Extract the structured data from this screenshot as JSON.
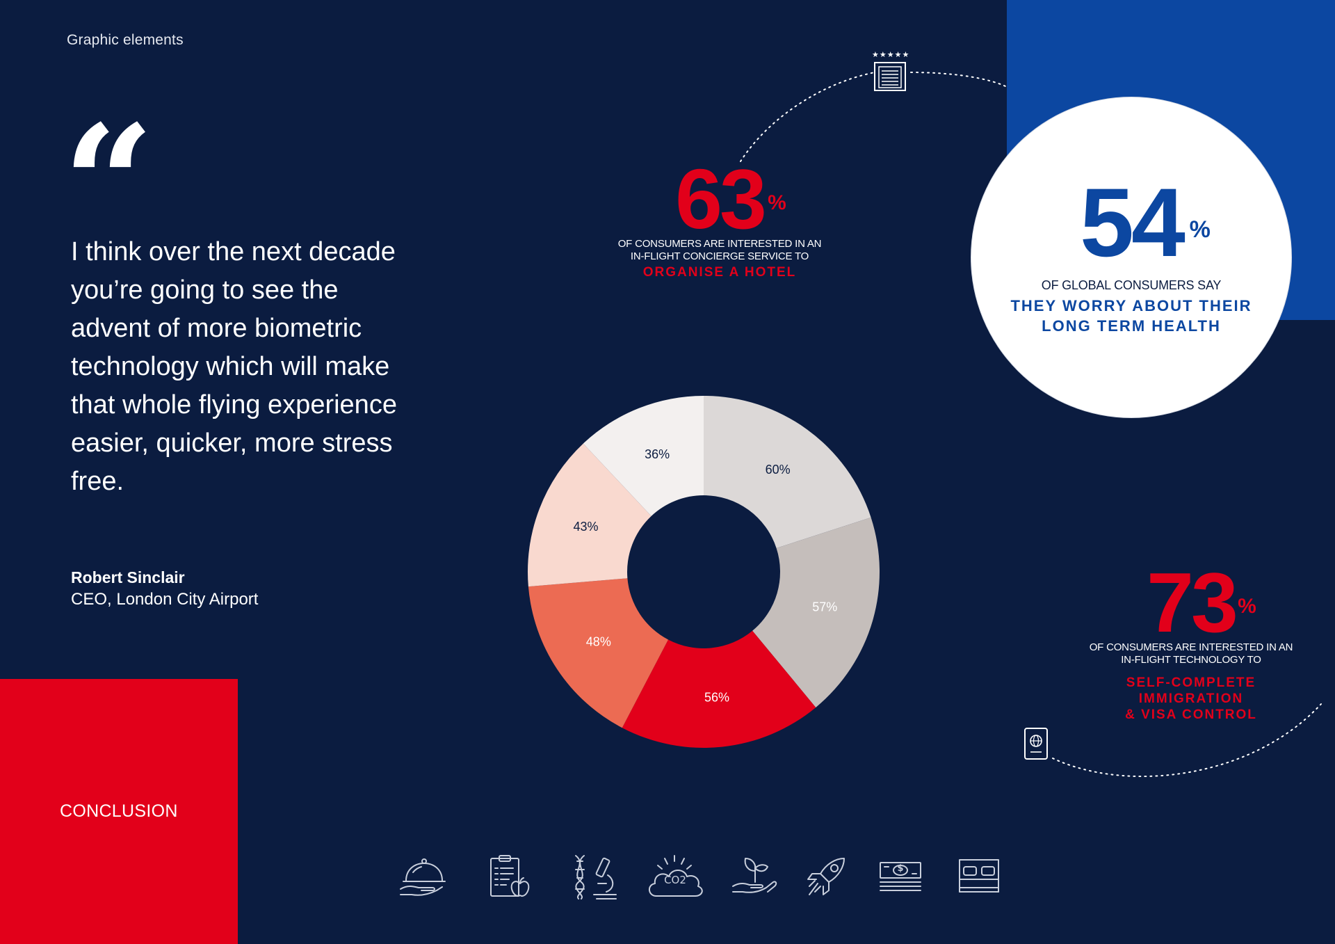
{
  "header": {
    "section_label": "Graphic elements"
  },
  "quote": {
    "mark": "“",
    "text": "I think over the next decade you’re going to see the advent of more biometric technology which will make that whole flying experience easier, quicker, more stress free.",
    "author": "Robert Sinclair",
    "role": "CEO, London City Airport"
  },
  "conclusion": {
    "label": "CONCLUSION"
  },
  "stats": {
    "hotel": {
      "value": "63",
      "unit": "%",
      "description_lines": [
        "OF CONSUMERS ARE INTERESTED IN AN",
        "IN-FLIGHT CONCIERGE SERVICE TO"
      ],
      "emphasis_lines": [
        "ORGANISE A HOTEL"
      ]
    },
    "health": {
      "value": "54",
      "unit": "%",
      "description_lines": [
        "OF GLOBAL CONSUMERS SAY"
      ],
      "emphasis_lines": [
        "THEY WORRY ABOUT THEIR",
        "LONG TERM HEALTH"
      ]
    },
    "immigration": {
      "value": "73",
      "unit": "%",
      "description_lines": [
        "OF CONSUMERS ARE INTERESTED IN AN",
        "IN-FLIGHT TECHNOLOGY TO"
      ],
      "emphasis_lines": [
        "SELF-COMPLETE",
        "IMMIGRATION",
        "& VISA CONTROL"
      ]
    }
  },
  "donut": {
    "segments": [
      {
        "value": 60,
        "label": "60%",
        "color": "#dcd8d7",
        "label_color": "#0b1c40"
      },
      {
        "value": 57,
        "label": "57%",
        "color": "#c5bebb",
        "label_color": "#ffffff"
      },
      {
        "value": 56,
        "label": "56%",
        "color": "#e2001a",
        "label_color": "#ffffff"
      },
      {
        "value": 48,
        "label": "48%",
        "color": "#ec6b53",
        "label_color": "#ffffff"
      },
      {
        "value": 43,
        "label": "43%",
        "color": "#f9d9cf",
        "label_color": "#0b1c40"
      },
      {
        "value": 36,
        "label": "36%",
        "color": "#f3f0ef",
        "label_color": "#0b1c40"
      }
    ]
  },
  "icons": {
    "hotel": {
      "name": "hotel-building-icon",
      "stars": "★★★★★"
    },
    "passport": {
      "name": "passport-icon"
    },
    "row": [
      {
        "name": "cloche-serving-icon"
      },
      {
        "name": "clipboard-apple-icon"
      },
      {
        "name": "dna-microscope-icon"
      },
      {
        "name": "co2-cloud-icon",
        "text": "CO2"
      },
      {
        "name": "plant-hand-icon"
      },
      {
        "name": "rocket-icon"
      },
      {
        "name": "money-stack-icon",
        "text": "$"
      },
      {
        "name": "bed-icon"
      }
    ]
  },
  "colors": {
    "background": "#0b1c40",
    "red": "#e2001a",
    "blue": "#0c47a1",
    "white": "#ffffff"
  }
}
